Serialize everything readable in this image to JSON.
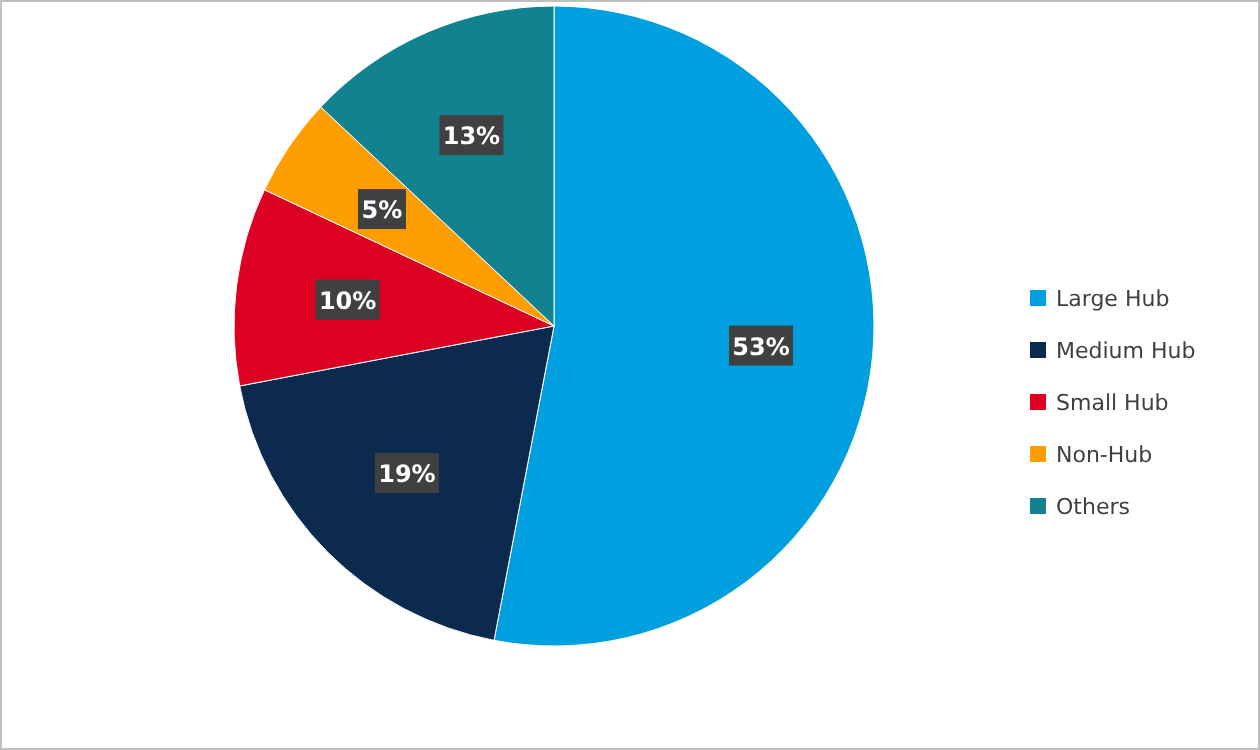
{
  "chart_data": {
    "type": "pie",
    "categories": [
      "Large Hub",
      "Medium Hub",
      "Small Hub",
      "Non-Hub",
      "Others"
    ],
    "values": [
      53,
      19,
      10,
      5,
      13
    ],
    "colors": [
      "#009fdf",
      "#0b2a4e",
      "#dc0023",
      "#ff9e00",
      "#138290"
    ],
    "value_labels": [
      "53%",
      "19%",
      "10%",
      "5%",
      "13%"
    ],
    "legend": "right"
  }
}
